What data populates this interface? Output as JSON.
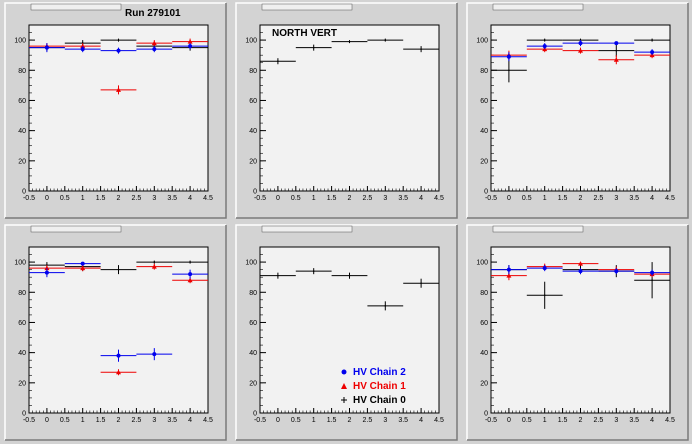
{
  "run_label": "Run 279101",
  "colors": {
    "chain2": "#0000ee",
    "chain1": "#ee0000",
    "chain0": "#000000"
  },
  "legend": [
    {
      "label": "HV Chain 2",
      "marker": "circle",
      "color": "#0000ee"
    },
    {
      "label": "HV Chain 1",
      "marker": "triangle",
      "color": "#ee0000"
    },
    {
      "label": "HV Chain 0",
      "marker": "plus",
      "color": "#000000"
    }
  ],
  "chart_data": [
    {
      "type": "scatter",
      "title": "Run 279101",
      "xlim": [
        -0.5,
        4.5
      ],
      "ylim": [
        0,
        110
      ],
      "xticks": [
        "-0.5",
        "0",
        "0.5",
        "1",
        "1.5",
        "2",
        "2.5",
        "3",
        "3.5",
        "4",
        "4.5"
      ],
      "yticks": [
        "0",
        "20",
        "40",
        "60",
        "80",
        "100"
      ],
      "series": [
        {
          "name": "HV Chain 0",
          "color": "#000000",
          "marker": "plus",
          "points": [
            {
              "x": 0,
              "y": 95,
              "xerr": 0.5,
              "yerr": 2
            },
            {
              "x": 1,
              "y": 98,
              "xerr": 0.5,
              "yerr": 2
            },
            {
              "x": 2,
              "y": 100,
              "xerr": 0.5,
              "yerr": 1
            },
            {
              "x": 3,
              "y": 96,
              "xerr": 0.5,
              "yerr": 2
            },
            {
              "x": 4,
              "y": 95,
              "xerr": 0.5,
              "yerr": 2
            }
          ]
        },
        {
          "name": "HV Chain 1",
          "color": "#ee0000",
          "marker": "triangle",
          "points": [
            {
              "x": 0,
              "y": 96,
              "xerr": 0.5,
              "yerr": 2
            },
            {
              "x": 1,
              "y": 96,
              "xerr": 0.5,
              "yerr": 2
            },
            {
              "x": 2,
              "y": 67,
              "xerr": 0.5,
              "yerr": 3
            },
            {
              "x": 3,
              "y": 98,
              "xerr": 0.5,
              "yerr": 2
            },
            {
              "x": 4,
              "y": 99,
              "xerr": 0.5,
              "yerr": 2
            }
          ]
        },
        {
          "name": "HV Chain 2",
          "color": "#0000ee",
          "marker": "circle",
          "points": [
            {
              "x": 0,
              "y": 95,
              "xerr": 0.5,
              "yerr": 3
            },
            {
              "x": 1,
              "y": 94,
              "xerr": 0.5,
              "yerr": 2
            },
            {
              "x": 2,
              "y": 93,
              "xerr": 0.5,
              "yerr": 2
            },
            {
              "x": 3,
              "y": 94,
              "xerr": 0.5,
              "yerr": 2
            },
            {
              "x": 4,
              "y": 96,
              "xerr": 0.5,
              "yerr": 2
            }
          ]
        }
      ]
    },
    {
      "type": "scatter",
      "title": "NORTH VERT",
      "xlim": [
        -0.5,
        4.5
      ],
      "ylim": [
        0,
        110
      ],
      "xticks": [
        "-0.5",
        "0",
        "0.5",
        "1",
        "1.5",
        "2",
        "2.5",
        "3",
        "3.5",
        "4",
        "4.5"
      ],
      "yticks": [
        "0",
        "20",
        "40",
        "60",
        "80",
        "100"
      ],
      "series": [
        {
          "name": "HV Chain 0",
          "color": "#000000",
          "marker": "plus",
          "points": [
            {
              "x": 0,
              "y": 86,
              "xerr": 0.5,
              "yerr": 2
            },
            {
              "x": 1,
              "y": 95,
              "xerr": 0.5,
              "yerr": 2
            },
            {
              "x": 2,
              "y": 99,
              "xerr": 0.5,
              "yerr": 1
            },
            {
              "x": 3,
              "y": 100,
              "xerr": 0.5,
              "yerr": 1
            },
            {
              "x": 4,
              "y": 94,
              "xerr": 0.5,
              "yerr": 2
            }
          ]
        }
      ]
    },
    {
      "type": "scatter",
      "title": "",
      "xlim": [
        -0.5,
        4.5
      ],
      "ylim": [
        0,
        110
      ],
      "xticks": [
        "-0.5",
        "0",
        "0.5",
        "1",
        "1.5",
        "2",
        "2.5",
        "3",
        "3.5",
        "4",
        "4.5"
      ],
      "yticks": [
        "0",
        "20",
        "40",
        "60",
        "80",
        "100"
      ],
      "series": [
        {
          "name": "HV Chain 0",
          "color": "#000000",
          "marker": "plus",
          "points": [
            {
              "x": 0,
              "y": 80,
              "xerr": 0.5,
              "yerr": 8
            },
            {
              "x": 1,
              "y": 100,
              "xerr": 0.5,
              "yerr": 1
            },
            {
              "x": 2,
              "y": 100,
              "xerr": 0.5,
              "yerr": 1
            },
            {
              "x": 3,
              "y": 93,
              "xerr": 0.5,
              "yerr": 4
            },
            {
              "x": 4,
              "y": 100,
              "xerr": 0.5,
              "yerr": 1
            }
          ]
        },
        {
          "name": "HV Chain 1",
          "color": "#ee0000",
          "marker": "triangle",
          "points": [
            {
              "x": 0,
              "y": 90,
              "xerr": 0.5,
              "yerr": 3
            },
            {
              "x": 1,
              "y": 94,
              "xerr": 0.5,
              "yerr": 2
            },
            {
              "x": 2,
              "y": 93,
              "xerr": 0.5,
              "yerr": 2
            },
            {
              "x": 3,
              "y": 87,
              "xerr": 0.5,
              "yerr": 3
            },
            {
              "x": 4,
              "y": 90,
              "xerr": 0.5,
              "yerr": 2
            }
          ]
        },
        {
          "name": "HV Chain 2",
          "color": "#0000ee",
          "marker": "circle",
          "points": [
            {
              "x": 0,
              "y": 89,
              "xerr": 0.5,
              "yerr": 3
            },
            {
              "x": 1,
              "y": 96,
              "xerr": 0.5,
              "yerr": 2
            },
            {
              "x": 2,
              "y": 98,
              "xerr": 0.5,
              "yerr": 2
            },
            {
              "x": 3,
              "y": 98,
              "xerr": 0.5,
              "yerr": 1
            },
            {
              "x": 4,
              "y": 92,
              "xerr": 0.5,
              "yerr": 2
            }
          ]
        }
      ]
    },
    {
      "type": "scatter",
      "title": "",
      "xlim": [
        -0.5,
        4.5
      ],
      "ylim": [
        0,
        110
      ],
      "xticks": [
        "-0.5",
        "0",
        "0.5",
        "1",
        "1.5",
        "2",
        "2.5",
        "3",
        "3.5",
        "4",
        "4.5"
      ],
      "yticks": [
        "0",
        "20",
        "40",
        "60",
        "80",
        "100"
      ],
      "series": [
        {
          "name": "HV Chain 0",
          "color": "#000000",
          "marker": "plus",
          "points": [
            {
              "x": 0,
              "y": 98,
              "xerr": 0.5,
              "yerr": 2
            },
            {
              "x": 1,
              "y": 97,
              "xerr": 0.5,
              "yerr": 3
            },
            {
              "x": 2,
              "y": 95,
              "xerr": 0.5,
              "yerr": 3
            },
            {
              "x": 3,
              "y": 100,
              "xerr": 0.5,
              "yerr": 1
            },
            {
              "x": 4,
              "y": 100,
              "xerr": 0.5,
              "yerr": 1
            }
          ]
        },
        {
          "name": "HV Chain 1",
          "color": "#ee0000",
          "marker": "triangle",
          "points": [
            {
              "x": 0,
              "y": 96,
              "xerr": 0.5,
              "yerr": 2
            },
            {
              "x": 1,
              "y": 96,
              "xerr": 0.5,
              "yerr": 2
            },
            {
              "x": 2,
              "y": 27,
              "xerr": 0.5,
              "yerr": 2
            },
            {
              "x": 3,
              "y": 97,
              "xerr": 0.5,
              "yerr": 2
            },
            {
              "x": 4,
              "y": 88,
              "xerr": 0.5,
              "yerr": 2
            }
          ]
        },
        {
          "name": "HV Chain 2",
          "color": "#0000ee",
          "marker": "circle",
          "points": [
            {
              "x": 0,
              "y": 93,
              "xerr": 0.5,
              "yerr": 3
            },
            {
              "x": 1,
              "y": 99,
              "xerr": 0.5,
              "yerr": 1
            },
            {
              "x": 2,
              "y": 38,
              "xerr": 0.5,
              "yerr": 4
            },
            {
              "x": 3,
              "y": 39,
              "xerr": 0.5,
              "yerr": 4
            },
            {
              "x": 4,
              "y": 92,
              "xerr": 0.5,
              "yerr": 3
            }
          ]
        }
      ]
    },
    {
      "type": "scatter",
      "title": "",
      "xlim": [
        -0.5,
        4.5
      ],
      "ylim": [
        0,
        110
      ],
      "xticks": [
        "-0.5",
        "0",
        "0.5",
        "1",
        "1.5",
        "2",
        "2.5",
        "3",
        "3.5",
        "4",
        "4.5"
      ],
      "yticks": [
        "0",
        "20",
        "40",
        "60",
        "80",
        "100"
      ],
      "series": [
        {
          "name": "HV Chain 0",
          "color": "#000000",
          "marker": "plus",
          "points": [
            {
              "x": 0,
              "y": 91,
              "xerr": 0.5,
              "yerr": 2
            },
            {
              "x": 1,
              "y": 94,
              "xerr": 0.5,
              "yerr": 2
            },
            {
              "x": 2,
              "y": 91,
              "xerr": 0.5,
              "yerr": 2
            },
            {
              "x": 3,
              "y": 71,
              "xerr": 0.5,
              "yerr": 3
            },
            {
              "x": 4,
              "y": 86,
              "xerr": 0.5,
              "yerr": 3
            }
          ]
        }
      ]
    },
    {
      "type": "scatter",
      "title": "",
      "xlim": [
        -0.5,
        4.5
      ],
      "ylim": [
        0,
        110
      ],
      "xticks": [
        "-0.5",
        "0",
        "0.5",
        "1",
        "1.5",
        "2",
        "2.5",
        "3",
        "3.5",
        "4",
        "4.5"
      ],
      "yticks": [
        "0",
        "20",
        "40",
        "60",
        "80",
        "100"
      ],
      "series": [
        {
          "name": "HV Chain 0",
          "color": "#000000",
          "marker": "plus",
          "points": [
            {
              "x": 0,
              "y": 95,
              "xerr": 0.5,
              "yerr": 3
            },
            {
              "x": 1,
              "y": 78,
              "xerr": 0.5,
              "yerr": 9
            },
            {
              "x": 2,
              "y": 95,
              "xerr": 0.5,
              "yerr": 3
            },
            {
              "x": 3,
              "y": 94,
              "xerr": 0.5,
              "yerr": 4
            },
            {
              "x": 4,
              "y": 88,
              "xerr": 0.5,
              "yerr": 12
            }
          ]
        },
        {
          "name": "HV Chain 1",
          "color": "#ee0000",
          "marker": "triangle",
          "points": [
            {
              "x": 0,
              "y": 91,
              "xerr": 0.5,
              "yerr": 3
            },
            {
              "x": 1,
              "y": 97,
              "xerr": 0.5,
              "yerr": 2
            },
            {
              "x": 2,
              "y": 99,
              "xerr": 0.5,
              "yerr": 1
            },
            {
              "x": 3,
              "y": 95,
              "xerr": 0.5,
              "yerr": 2
            },
            {
              "x": 4,
              "y": 92,
              "xerr": 0.5,
              "yerr": 2
            }
          ]
        },
        {
          "name": "HV Chain 2",
          "color": "#0000ee",
          "marker": "circle",
          "points": [
            {
              "x": 0,
              "y": 95,
              "xerr": 0.5,
              "yerr": 3
            },
            {
              "x": 1,
              "y": 96,
              "xerr": 0.5,
              "yerr": 2
            },
            {
              "x": 2,
              "y": 94,
              "xerr": 0.5,
              "yerr": 2
            },
            {
              "x": 3,
              "y": 94,
              "xerr": 0.5,
              "yerr": 2
            },
            {
              "x": 4,
              "y": 93,
              "xerr": 0.5,
              "yerr": 2
            }
          ]
        }
      ]
    }
  ]
}
